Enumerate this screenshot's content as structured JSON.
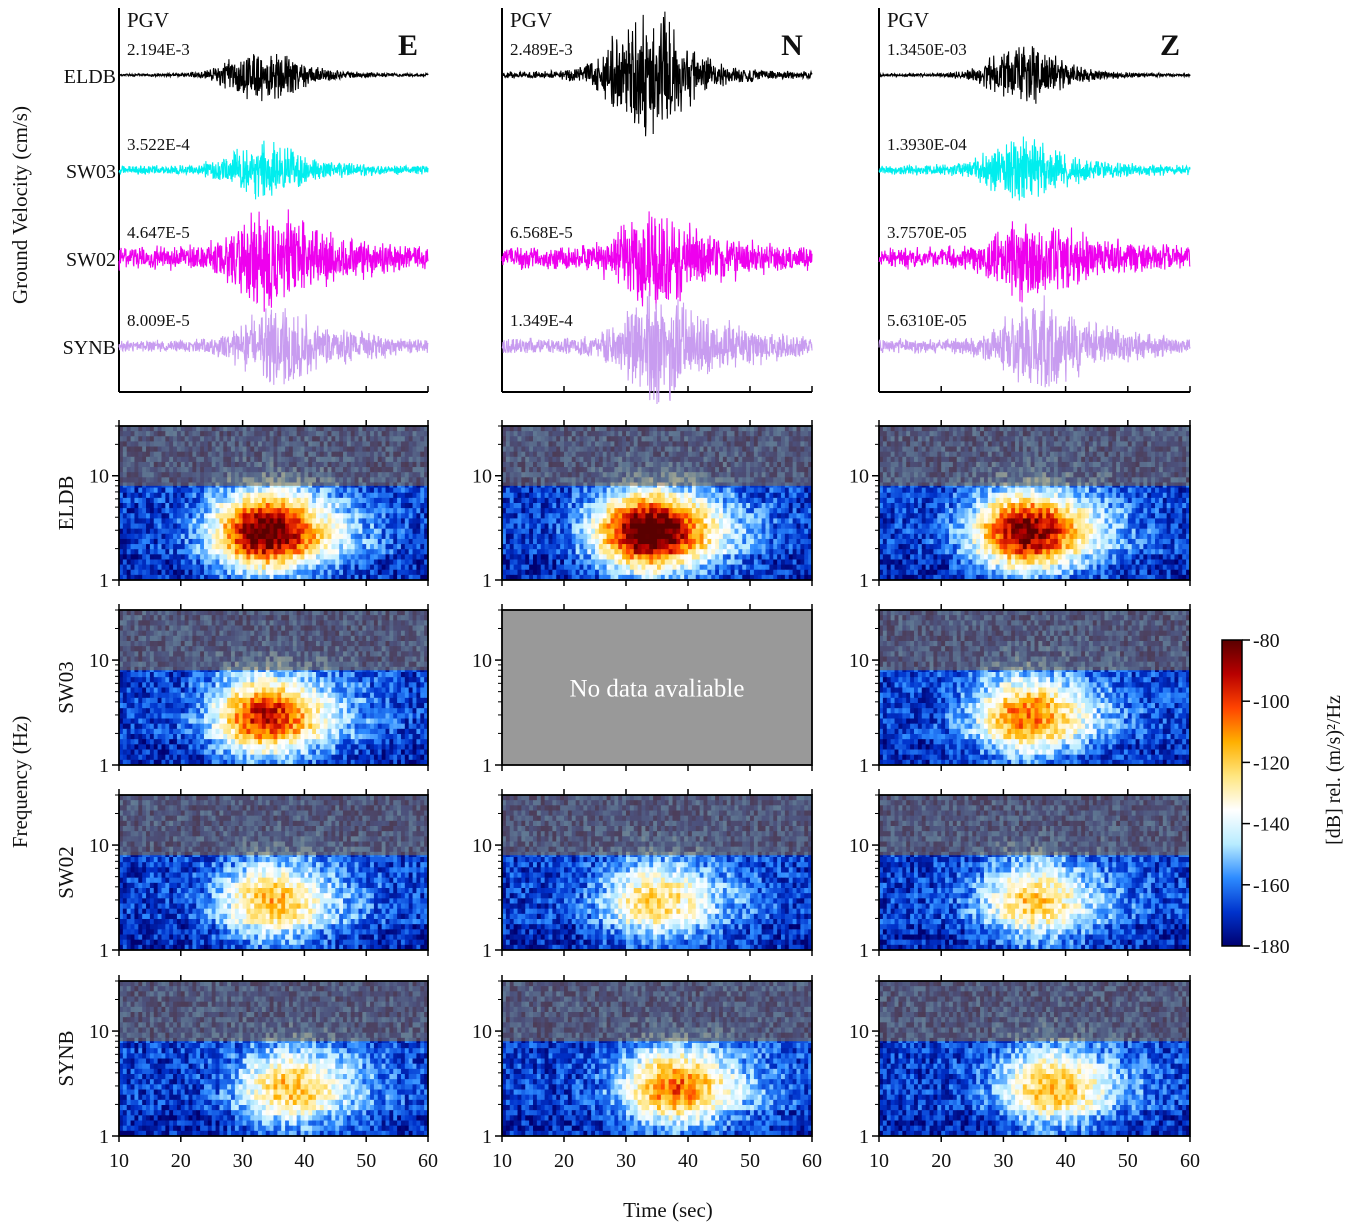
{
  "figure": {
    "seis_ylabel": "Ground Velocity (cm/s)",
    "spec_ylabel": "Frequency (Hz)",
    "xlabel": "Time (sec)",
    "no_data_text": "No data avaliable",
    "pgv_label": "PGV",
    "colorbar_label": "[dB] rel. (m/s)²/Hz"
  },
  "colors": {
    "ELDB": "#000000",
    "SW03": "#00eeee",
    "SW02": "#ee00ee",
    "SYNB": "#c89cf0",
    "nodata": "#999999"
  },
  "chart_data": [
    {
      "type": "line",
      "panel": "seismograms",
      "components": [
        "E",
        "N",
        "Z"
      ],
      "stations": [
        "ELDB",
        "SW03",
        "SW02",
        "SYNB"
      ],
      "xlim": [
        10,
        60
      ],
      "x_ticks": [
        10,
        20,
        30,
        40,
        50,
        60
      ],
      "pgv": {
        "E": [
          "2.194E-3",
          "3.522E-4",
          "4.647E-5",
          "8.009E-5"
        ],
        "N": [
          "2.489E-3",
          null,
          "6.568E-5",
          "1.349E-4"
        ],
        "Z": [
          "1.3450E-03",
          "1.3930E-04",
          "3.7570E-05",
          "5.6310E-05"
        ]
      },
      "signal_peak_time_sec": {
        "ELDB": 33,
        "SW03": 33,
        "SW02": 34,
        "SYNB": 35
      }
    },
    {
      "type": "heatmap",
      "panel": "spectrograms",
      "components": [
        "E",
        "N",
        "Z"
      ],
      "stations": [
        "ELDB",
        "SW03",
        "SW02",
        "SYNB"
      ],
      "xlim": [
        10,
        60
      ],
      "ylim": [
        1,
        30
      ],
      "yscale": "log",
      "x_ticks": [
        10,
        20,
        30,
        40,
        50,
        60
      ],
      "y_ticks": [
        1,
        10
      ],
      "shaded_above_hz": 8,
      "missing": [
        {
          "station": "SW03",
          "component": "N"
        }
      ],
      "peak_level_db": {
        "ELDB": {
          "E": -90,
          "N": -85,
          "Z": -95
        },
        "SW03": {
          "E": -105,
          "N": null,
          "Z": -115
        },
        "SW02": {
          "E": -125,
          "N": -128,
          "Z": -127
        },
        "SYNB": {
          "E": -125,
          "N": -115,
          "Z": -124
        }
      }
    },
    {
      "type": "heatmap",
      "panel": "colorbar",
      "range_db": [
        -180,
        -80
      ],
      "ticks": [
        -80,
        -100,
        -120,
        -140,
        -160,
        -180
      ],
      "colormap": [
        "#000070",
        "#0033cc",
        "#2d8bff",
        "#b8ecff",
        "#ffffff",
        "#ffe680",
        "#ffb000",
        "#ff4400",
        "#b80000",
        "#5a0000"
      ]
    }
  ]
}
